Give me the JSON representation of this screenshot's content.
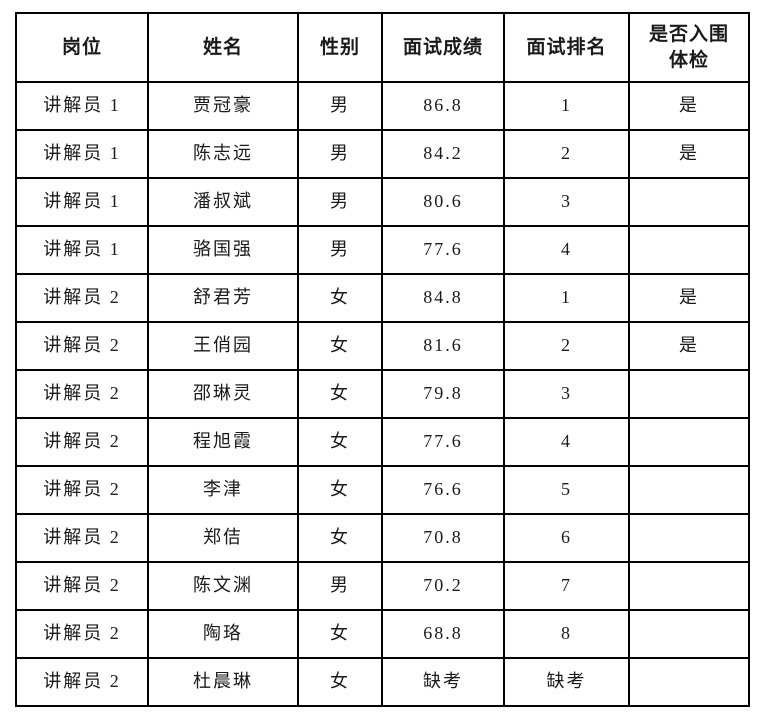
{
  "table": {
    "columns": [
      {
        "label": "岗位"
      },
      {
        "label": "姓名"
      },
      {
        "label": "性别"
      },
      {
        "label": "面试成绩"
      },
      {
        "label": "面试排名"
      },
      {
        "label": "是否入围\n体检"
      }
    ],
    "rows": [
      [
        "讲解员 1",
        "贾冠豪",
        "男",
        "86.8",
        "1",
        "是"
      ],
      [
        "讲解员 1",
        "陈志远",
        "男",
        "84.2",
        "2",
        "是"
      ],
      [
        "讲解员 1",
        "潘叔斌",
        "男",
        "80.6",
        "3",
        ""
      ],
      [
        "讲解员 1",
        "骆国强",
        "男",
        "77.6",
        "4",
        ""
      ],
      [
        "讲解员 2",
        "舒君芳",
        "女",
        "84.8",
        "1",
        "是"
      ],
      [
        "讲解员 2",
        "王俏园",
        "女",
        "81.6",
        "2",
        "是"
      ],
      [
        "讲解员 2",
        "邵琳灵",
        "女",
        "79.8",
        "3",
        ""
      ],
      [
        "讲解员 2",
        "程旭霞",
        "女",
        "77.6",
        "4",
        ""
      ],
      [
        "讲解员 2",
        "李津",
        "女",
        "76.6",
        "5",
        ""
      ],
      [
        "讲解员 2",
        "郑佶",
        "女",
        "70.8",
        "6",
        ""
      ],
      [
        "讲解员 2",
        "陈文渊",
        "男",
        "70.2",
        "7",
        ""
      ],
      [
        "讲解员 2",
        "陶珞",
        "女",
        "68.8",
        "8",
        ""
      ],
      [
        "讲解员 2",
        "杜晨琳",
        "女",
        "缺考",
        "缺考",
        ""
      ]
    ]
  },
  "colors": {
    "border": "#000000",
    "text": "#1a1a1a",
    "background": "#ffffff"
  }
}
